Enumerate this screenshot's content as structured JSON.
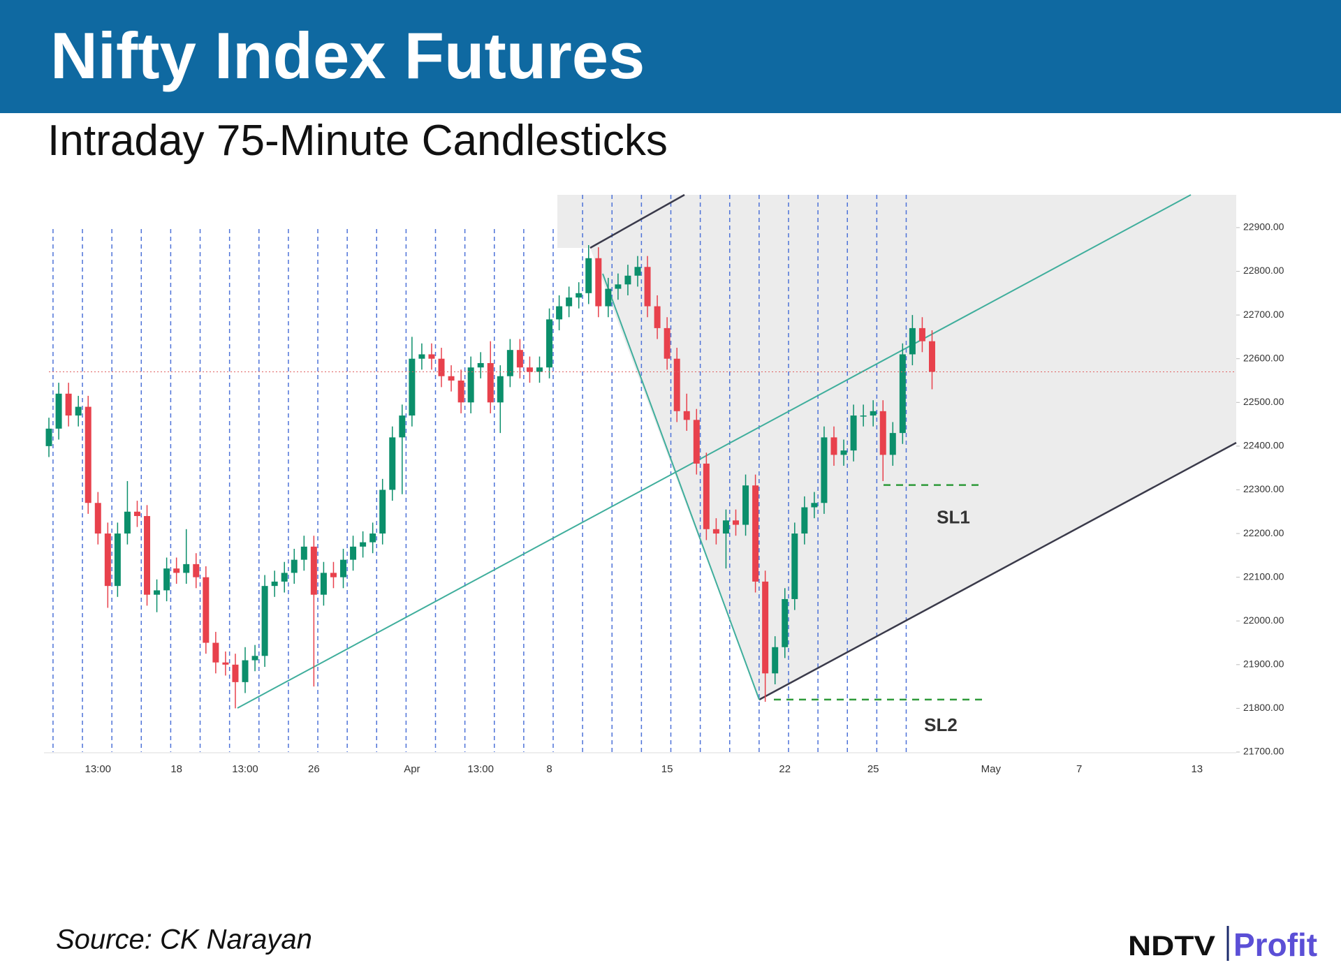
{
  "chart_data": {
    "type": "candlestick",
    "title": "Nifty Index Futures",
    "subtitle": "Intraday 75-Minute Candlesticks",
    "source": "Source: CK Narayan",
    "logo": {
      "brand": "NDTV",
      "product": "Profit"
    },
    "up_color": "#0b8f6b",
    "down_color": "#e8414c",
    "categories": [
      null,
      null,
      null,
      null,
      null,
      "13:00",
      null,
      null,
      null,
      null,
      null,
      null,
      null,
      "18",
      null,
      null,
      null,
      null,
      null,
      null,
      "13:00",
      null,
      null,
      null,
      null,
      null,
      null,
      "26",
      null,
      null,
      null,
      null,
      null,
      null,
      null,
      null,
      null,
      "Apr",
      null,
      null,
      null,
      null,
      null,
      null,
      "13:00",
      null,
      null,
      null,
      null,
      null,
      null,
      "8",
      null,
      null,
      null,
      null,
      null,
      null,
      null,
      null,
      null,
      null,
      null,
      "15",
      null,
      null,
      null,
      null,
      null,
      null,
      null,
      null,
      null,
      null,
      null,
      "22",
      null,
      null,
      null,
      null,
      null,
      null,
      null,
      null,
      "25",
      null,
      null,
      null,
      null,
      null,
      null,
      null,
      null,
      null,
      null,
      null,
      "May",
      null,
      null,
      null,
      null,
      null,
      null,
      null,
      null,
      "7",
      null,
      null,
      null,
      null,
      null,
      null,
      null,
      null,
      null,
      null,
      null,
      "13",
      null,
      null,
      null
    ],
    "open": [
      22400,
      22440,
      22520,
      22470,
      22490,
      22270,
      22200,
      22080,
      22200,
      22250,
      22240,
      22060,
      22070,
      22120,
      22110,
      22130,
      22100,
      21950,
      21905,
      21900,
      21860,
      21910,
      21920,
      22080,
      22090,
      22110,
      22140,
      22170,
      22060,
      22110,
      22100,
      22140,
      22170,
      22180,
      22200,
      22300,
      22420,
      22470,
      22600,
      22610,
      22600,
      22560,
      22550,
      22500,
      22580,
      22590,
      22500,
      22560,
      22620,
      22580,
      22570,
      22580,
      22690,
      22720,
      22740,
      22750,
      22830,
      22720,
      22760,
      22770,
      22790,
      22810,
      22720,
      22670,
      22600,
      22480,
      22460,
      22360,
      22210,
      22200,
      22230,
      22220,
      22310,
      22090,
      21880,
      21940,
      22050,
      22200,
      22260,
      22270,
      22420,
      22380,
      22390,
      22470,
      22470,
      22480,
      22380,
      22430,
      22610,
      22670,
      22640,
      null,
      null,
      null,
      null,
      null,
      null,
      null,
      null,
      null,
      null,
      null,
      null,
      null,
      null,
      null,
      null,
      null,
      null,
      null,
      null,
      null,
      null,
      null,
      null,
      null,
      null,
      null,
      null,
      null,
      null
    ],
    "high": [
      22465,
      22545,
      22545,
      22515,
      22515,
      22295,
      22225,
      22225,
      22320,
      22275,
      22265,
      22095,
      22145,
      22145,
      22210,
      22155,
      22125,
      21975,
      21930,
      21925,
      21940,
      21945,
      22105,
      22115,
      22135,
      22165,
      22195,
      22195,
      22135,
      22135,
      22165,
      22195,
      22205,
      22225,
      22325,
      22445,
      22495,
      22650,
      22635,
      22635,
      22625,
      22585,
      22575,
      22605,
      22615,
      22640,
      22585,
      22645,
      22645,
      22605,
      22605,
      22715,
      22745,
      22765,
      22775,
      22860,
      22855,
      22785,
      22795,
      22815,
      22835,
      22835,
      22745,
      22695,
      22625,
      22520,
      22485,
      22385,
      22235,
      22255,
      22255,
      22335,
      22335,
      22115,
      21965,
      22075,
      22225,
      22285,
      22295,
      22445,
      22445,
      22415,
      22495,
      22495,
      22505,
      22505,
      22455,
      22635,
      22700,
      22695,
      22665,
      null,
      null,
      null,
      null,
      null,
      null,
      null,
      null,
      null,
      null,
      null,
      null,
      null,
      null,
      null,
      null,
      null,
      null,
      null,
      null,
      null,
      null,
      null,
      null,
      null,
      null,
      null,
      null,
      null,
      null
    ],
    "low": [
      22375,
      22415,
      22445,
      22445,
      22245,
      22175,
      22030,
      22055,
      22175,
      22215,
      22035,
      22020,
      22045,
      22085,
      22085,
      22075,
      21925,
      21880,
      21875,
      21800,
      21835,
      21885,
      21895,
      22055,
      22065,
      22085,
      22115,
      21850,
      22035,
      22075,
      22075,
      22115,
      22145,
      22155,
      22175,
      22275,
      22290,
      22445,
      22575,
      22575,
      22535,
      22525,
      22475,
      22475,
      22555,
      22475,
      22430,
      22535,
      22555,
      22545,
      22545,
      22555,
      22665,
      22695,
      22715,
      22725,
      22695,
      22695,
      22735,
      22745,
      22765,
      22695,
      22645,
      22575,
      22455,
      22435,
      22335,
      22185,
      22175,
      22120,
      22195,
      22195,
      22065,
      21815,
      21855,
      21915,
      22025,
      22175,
      22235,
      22245,
      22355,
      22355,
      22365,
      22445,
      22445,
      22320,
      22355,
      22405,
      22585,
      22615,
      22530,
      null,
      null,
      null,
      null,
      null,
      null,
      null,
      null,
      null,
      null,
      null,
      null,
      null,
      null,
      null,
      null,
      null,
      null,
      null,
      null,
      null,
      null,
      null,
      null,
      null,
      null,
      null,
      null,
      null,
      null
    ],
    "close": [
      22440,
      22520,
      22470,
      22490,
      22270,
      22200,
      22080,
      22200,
      22250,
      22240,
      22060,
      22070,
      22120,
      22110,
      22130,
      22100,
      21950,
      21905,
      21900,
      21860,
      21910,
      21920,
      22080,
      22090,
      22110,
      22140,
      22170,
      22060,
      22110,
      22100,
      22140,
      22170,
      22180,
      22200,
      22300,
      22420,
      22470,
      22600,
      22610,
      22600,
      22560,
      22550,
      22500,
      22580,
      22590,
      22500,
      22560,
      22620,
      22580,
      22570,
      22580,
      22690,
      22720,
      22740,
      22750,
      22830,
      22720,
      22760,
      22770,
      22790,
      22810,
      22720,
      22670,
      22600,
      22480,
      22460,
      22360,
      22210,
      22200,
      22230,
      22220,
      22310,
      22090,
      21880,
      21940,
      22050,
      22200,
      22260,
      22270,
      22420,
      22380,
      22390,
      22470,
      22470,
      22480,
      22380,
      22430,
      22610,
      22670,
      22640,
      22570,
      null,
      null,
      null,
      null,
      null,
      null,
      null,
      null,
      null,
      null,
      null,
      null,
      null,
      null,
      null,
      null,
      null,
      null,
      null,
      null,
      null,
      null,
      null,
      null,
      null,
      null,
      null,
      null,
      null,
      null
    ],
    "ylim": [
      21700,
      22975
    ],
    "yticks": [
      {
        "value": 21700,
        "label": "21700.00"
      },
      {
        "value": 21800,
        "label": "21800.00"
      },
      {
        "value": 21900,
        "label": "21900.00"
      },
      {
        "value": 22000,
        "label": "22000.00"
      },
      {
        "value": 22100,
        "label": "22100.00"
      },
      {
        "value": 22200,
        "label": "22200.00"
      },
      {
        "value": 22300,
        "label": "22300.00"
      },
      {
        "value": 22400,
        "label": "22400.00"
      },
      {
        "value": 22500,
        "label": "22500.00"
      },
      {
        "value": 22600,
        "label": "22600.00"
      },
      {
        "value": 22700,
        "label": "22700.00"
      },
      {
        "value": 22800,
        "label": "22800.00"
      },
      {
        "value": 22900,
        "label": "22900.00"
      }
    ],
    "annotations": [
      {
        "text": "SL1",
        "value": 22311
      },
      {
        "text": "SL2",
        "value": 21820
      }
    ]
  }
}
